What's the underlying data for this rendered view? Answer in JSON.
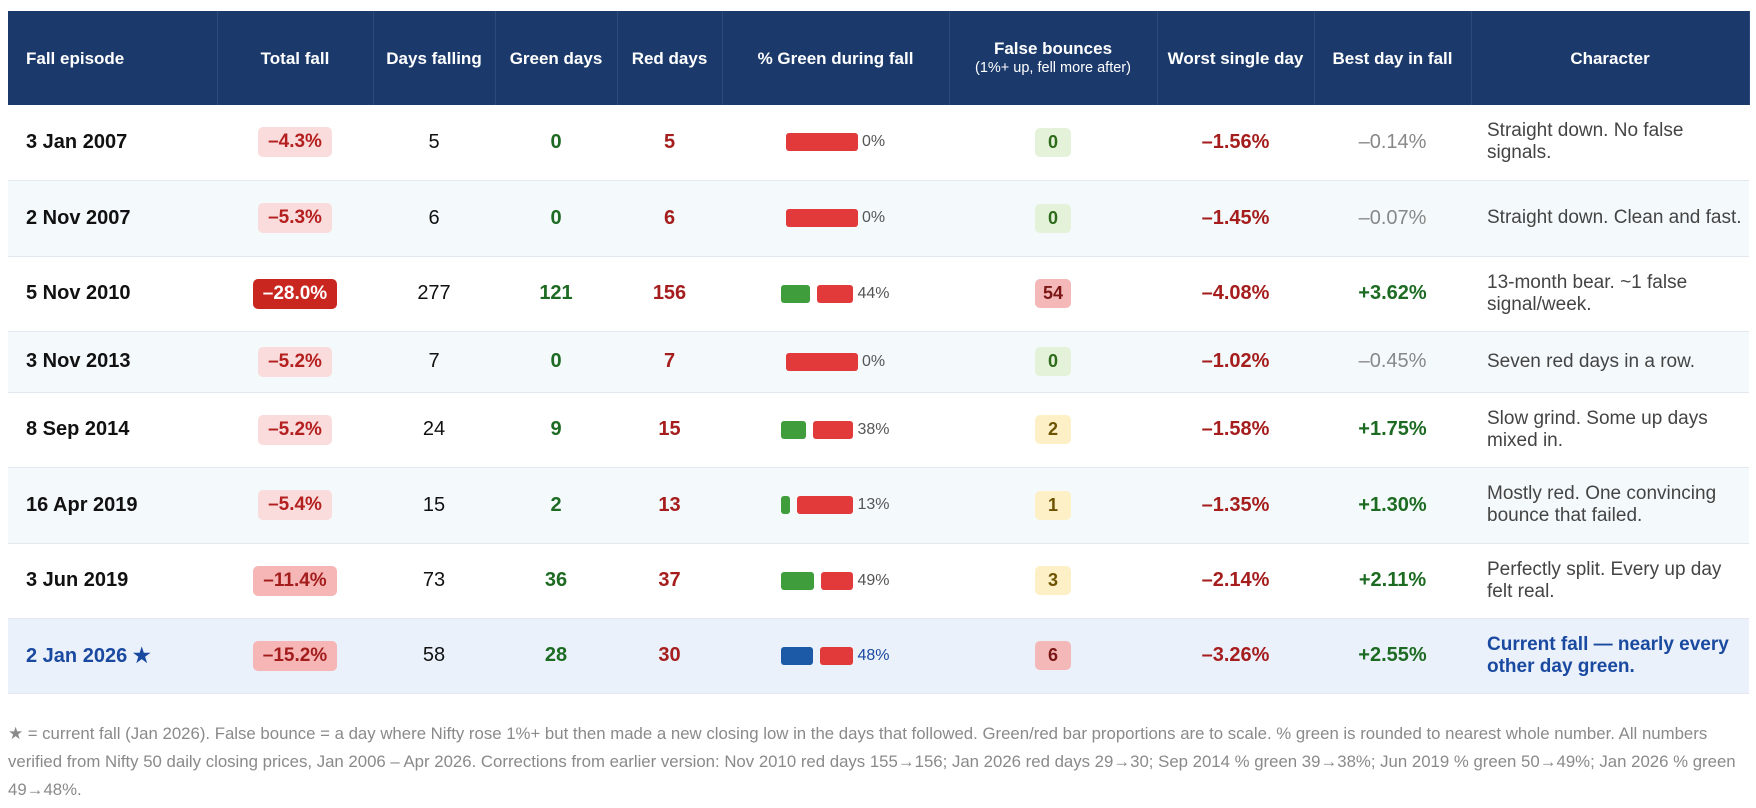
{
  "table": {
    "headers": [
      {
        "label": "Fall episode"
      },
      {
        "label": "Total fall"
      },
      {
        "label": "Days falling"
      },
      {
        "label": "Green days"
      },
      {
        "label": "Red days"
      },
      {
        "label": "% Green during fall"
      },
      {
        "label": "False bounces",
        "note": "(1%+ up, fell more after)"
      },
      {
        "label": "Worst single day"
      },
      {
        "label": "Best day in fall"
      },
      {
        "label": "Character"
      }
    ],
    "rows": [
      {
        "episode": "3 Jan 2007",
        "total_fall": "–4.3%",
        "days_falling": 5,
        "green_days": 0,
        "red_days": 5,
        "pct_green": "0%",
        "false_bounces": 0,
        "worst_day": "–1.56%",
        "best_day": "–0.14%",
        "character": "Straight down. No false signals."
      },
      {
        "episode": "2 Nov 2007",
        "total_fall": "–5.3%",
        "days_falling": 6,
        "green_days": 0,
        "red_days": 6,
        "pct_green": "0%",
        "false_bounces": 0,
        "worst_day": "–1.45%",
        "best_day": "–0.07%",
        "character": "Straight down. Clean and fast."
      },
      {
        "episode": "5 Nov 2010",
        "total_fall": "–28.0%",
        "days_falling": 277,
        "green_days": 121,
        "red_days": 156,
        "pct_green": "44%",
        "false_bounces": 54,
        "worst_day": "–4.08%",
        "best_day": "+3.62%",
        "character": "13-month bear. ~1 false signal/week."
      },
      {
        "episode": "3 Nov 2013",
        "total_fall": "–5.2%",
        "days_falling": 7,
        "green_days": 0,
        "red_days": 7,
        "pct_green": "0%",
        "false_bounces": 0,
        "worst_day": "–1.02%",
        "best_day": "–0.45%",
        "character": "Seven red days in a row."
      },
      {
        "episode": "8 Sep 2014",
        "total_fall": "–5.2%",
        "days_falling": 24,
        "green_days": 9,
        "red_days": 15,
        "pct_green": "38%",
        "false_bounces": 2,
        "worst_day": "–1.58%",
        "best_day": "+1.75%",
        "character": "Slow grind. Some up days mixed in."
      },
      {
        "episode": "16 Apr 2019",
        "total_fall": "–5.4%",
        "days_falling": 15,
        "green_days": 2,
        "red_days": 13,
        "pct_green": "13%",
        "false_bounces": 1,
        "worst_day": "–1.35%",
        "best_day": "+1.30%",
        "character": "Mostly red. One convincing bounce that failed."
      },
      {
        "episode": "3 Jun 2019",
        "total_fall": "–11.4%",
        "days_falling": 73,
        "green_days": 36,
        "red_days": 37,
        "pct_green": "49%",
        "false_bounces": 3,
        "worst_day": "–2.14%",
        "best_day": "+2.11%",
        "character": "Perfectly split. Every up day felt real."
      },
      {
        "episode": "2 Jan 2026 ★",
        "total_fall": "–15.2%",
        "days_falling": 58,
        "green_days": 28,
        "red_days": 30,
        "pct_green": "48%",
        "false_bounces": 6,
        "worst_day": "–3.26%",
        "best_day": "+2.55%",
        "character": "Current fall — nearly every other day green."
      }
    ]
  },
  "footnote": "★ = current fall (Jan 2026). False bounce = a day where Nifty rose 1%+ but then made a new closing low in the days that followed. Green/red bar proportions are to scale. % green is rounded to nearest whole number. All numbers verified from Nifty 50 daily closing prices, Jan 2006 – Apr 2026. Corrections from earlier version: Nov 2010 red days 155→156; Jan 2026 red days 29→30; Sep 2014 % green 39→38%; Jun 2019 % green 50→49%; Jan 2026 % green 49→48%."
}
